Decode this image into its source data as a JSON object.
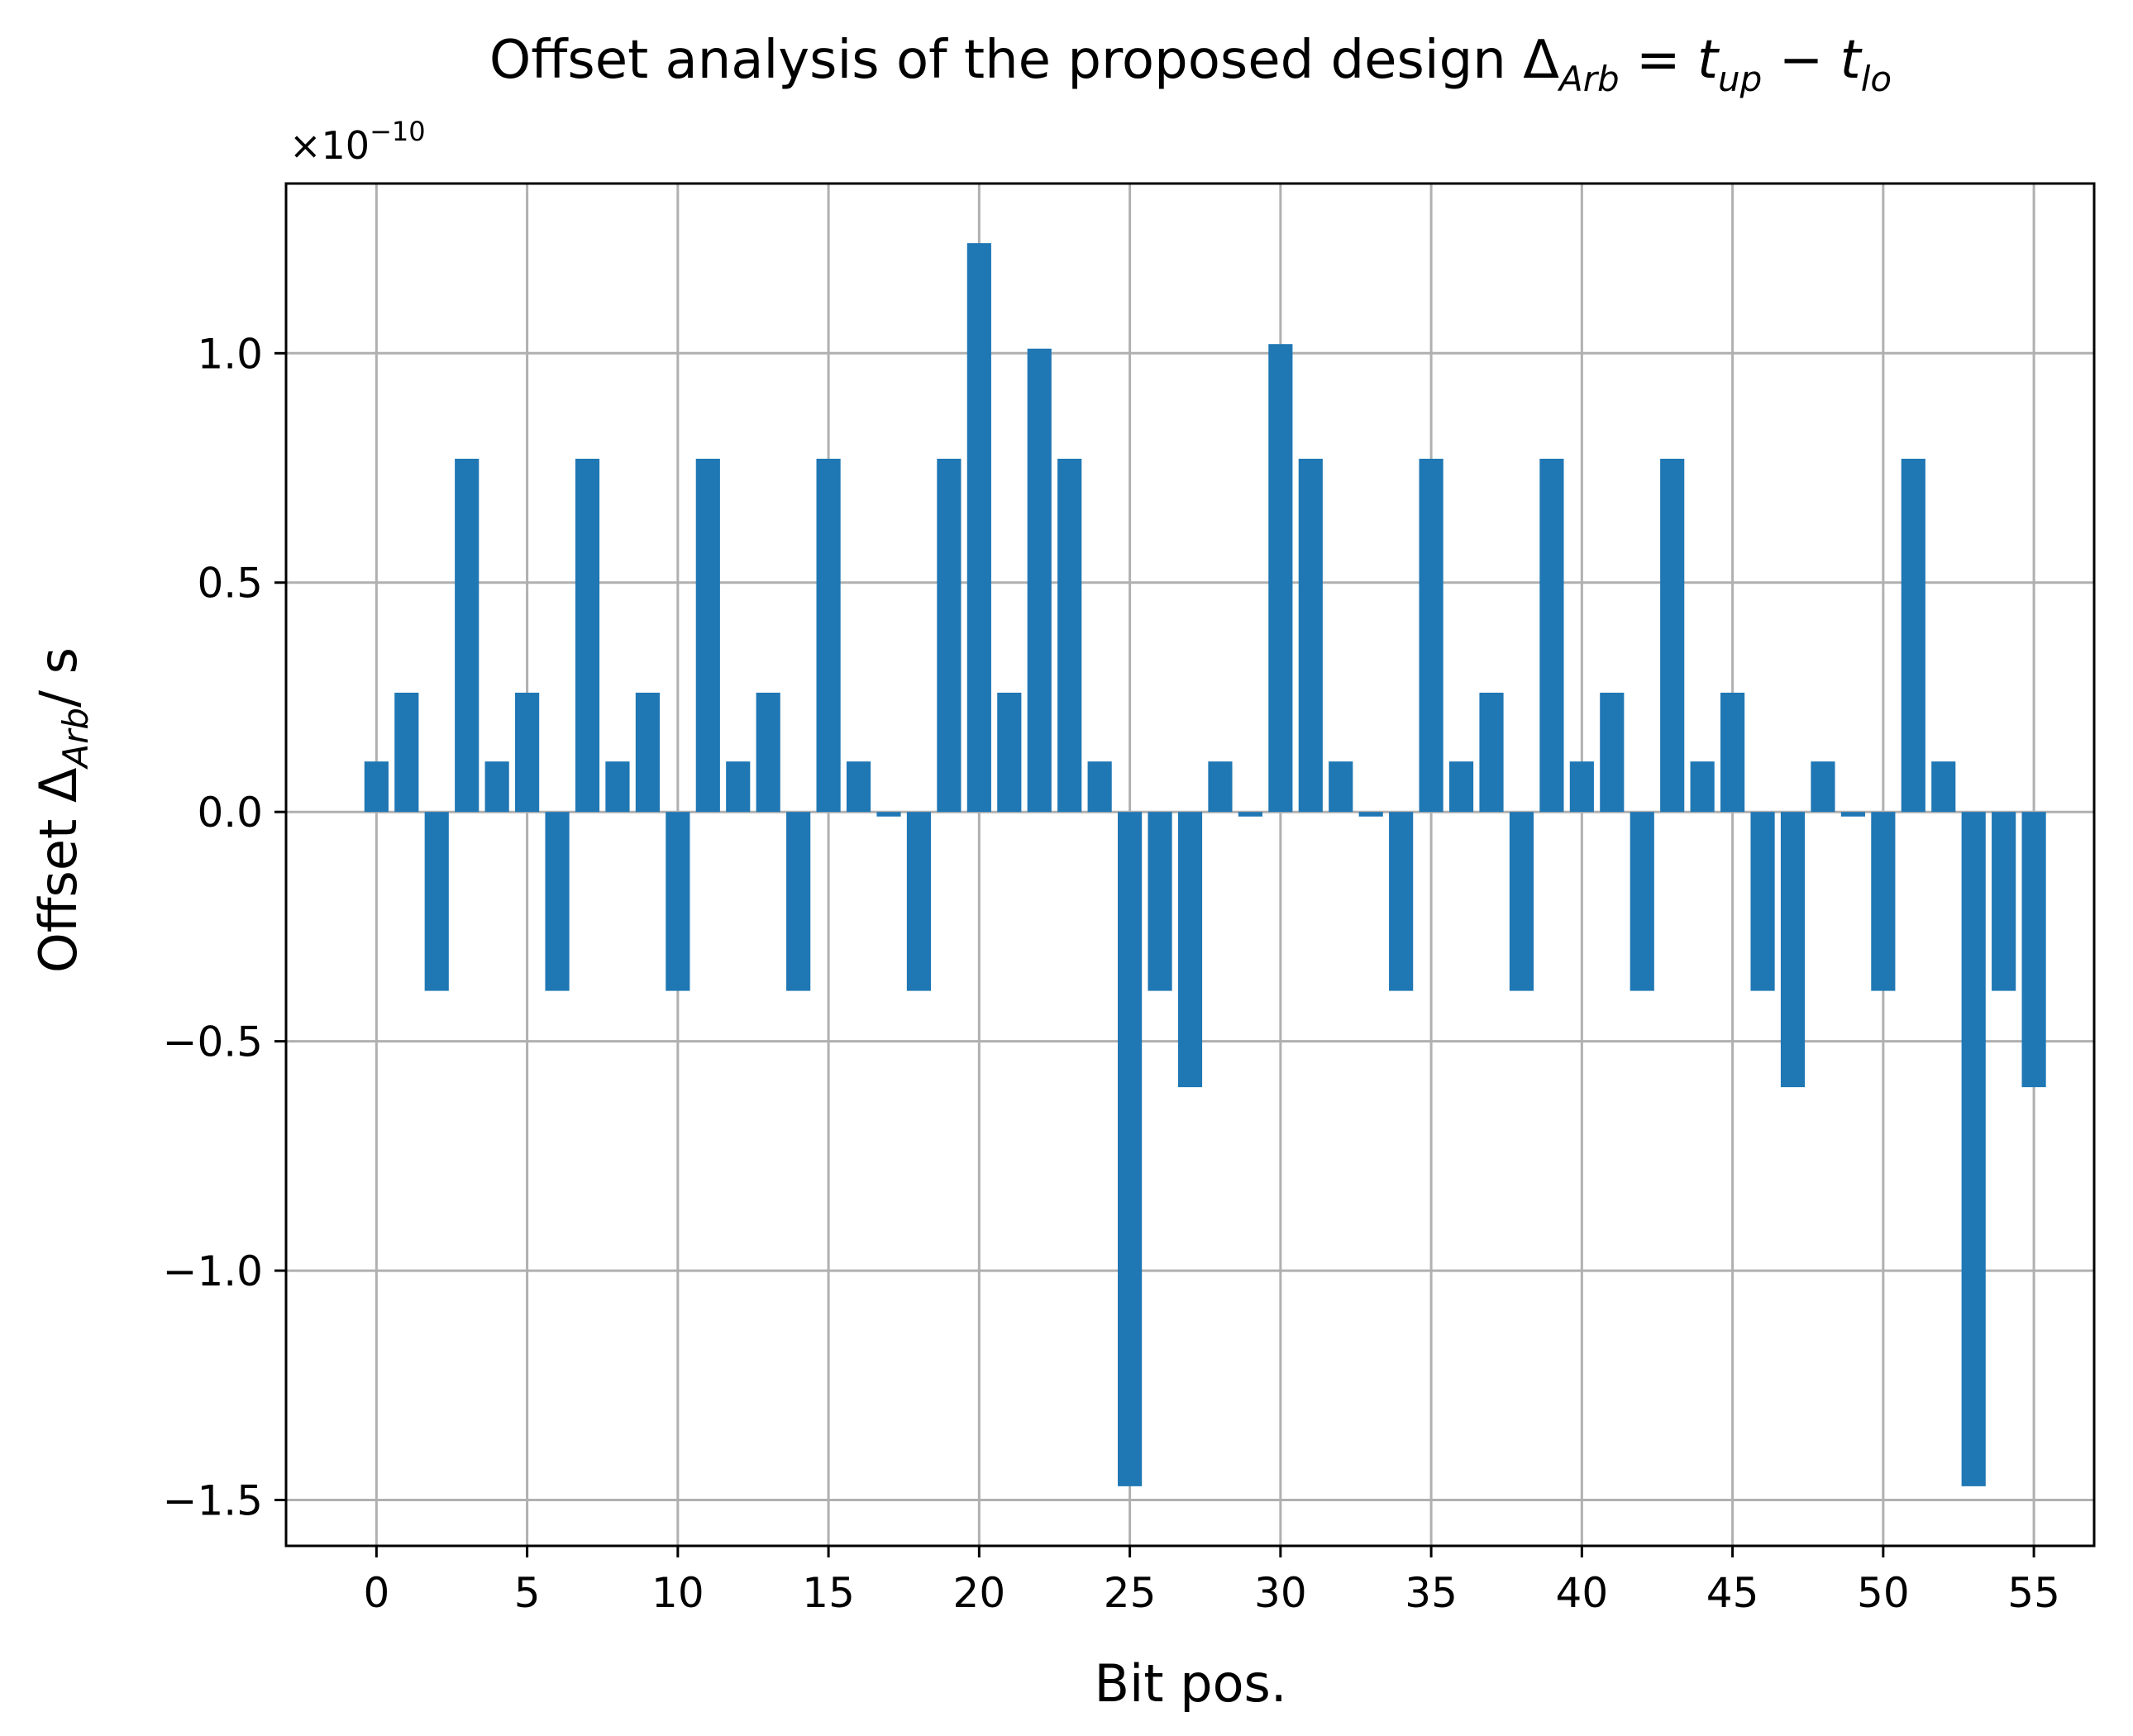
{
  "chart_data": {
    "type": "bar",
    "title": {
      "prefix": "Offset analysis of the proposed design ",
      "delta": "Δ",
      "delta_sub": "Arb",
      "equals": " = ",
      "t1": "t",
      "t1_sub": "up",
      "minus": " − ",
      "t2": "t",
      "t2_sub": "lo"
    },
    "xlabel": "Bit pos.",
    "ylabel": {
      "prefix": "Offset ",
      "delta": "Δ",
      "delta_sub": "Arb",
      "suffix": "/ s"
    },
    "y_offset_text": {
      "base": "×10",
      "exp": "−10"
    },
    "x": [
      0,
      1,
      2,
      3,
      4,
      5,
      6,
      7,
      8,
      9,
      10,
      11,
      12,
      13,
      14,
      15,
      16,
      17,
      18,
      19,
      20,
      21,
      22,
      23,
      24,
      25,
      26,
      27,
      28,
      29,
      30,
      31,
      32,
      33,
      34,
      35,
      36,
      37,
      38,
      39,
      40,
      41,
      42,
      43,
      44,
      45,
      46,
      47,
      48,
      49,
      50,
      51,
      52,
      53,
      54,
      55
    ],
    "values": [
      0.11,
      0.26,
      -0.39,
      0.77,
      0.11,
      0.26,
      -0.39,
      0.77,
      0.11,
      0.26,
      -0.39,
      0.77,
      0.11,
      0.26,
      -0.39,
      0.77,
      0.11,
      -0.01,
      -0.39,
      0.77,
      1.24,
      0.26,
      1.01,
      0.77,
      0.11,
      -1.47,
      -0.39,
      -0.6,
      0.11,
      -0.01,
      1.02,
      0.77,
      0.11,
      -0.01,
      -0.39,
      0.77,
      0.11,
      0.26,
      -0.39,
      0.77,
      0.11,
      0.26,
      -0.39,
      0.77,
      0.11,
      0.26,
      -0.39,
      -0.6,
      0.11,
      -0.01,
      -0.39,
      0.77,
      0.11,
      -1.47,
      -0.39,
      -0.6
    ],
    "xlim": [
      -3,
      57
    ],
    "ylim": [
      -1.6,
      1.37
    ],
    "xticks": [
      0,
      5,
      10,
      15,
      20,
      25,
      30,
      35,
      40,
      45,
      50,
      55
    ],
    "xtick_labels": [
      "0",
      "5",
      "10",
      "15",
      "20",
      "25",
      "30",
      "35",
      "40",
      "45",
      "50",
      "55"
    ],
    "yticks": [
      -1.5,
      -1.0,
      -0.5,
      0.0,
      0.5,
      1.0
    ],
    "ytick_labels": [
      "−1.5",
      "−1.0",
      "−0.5",
      "0.0",
      "0.5",
      "1.0"
    ],
    "grid": true,
    "bar_color": "#1f77b4",
    "grid_color": "#b0b0b0"
  }
}
